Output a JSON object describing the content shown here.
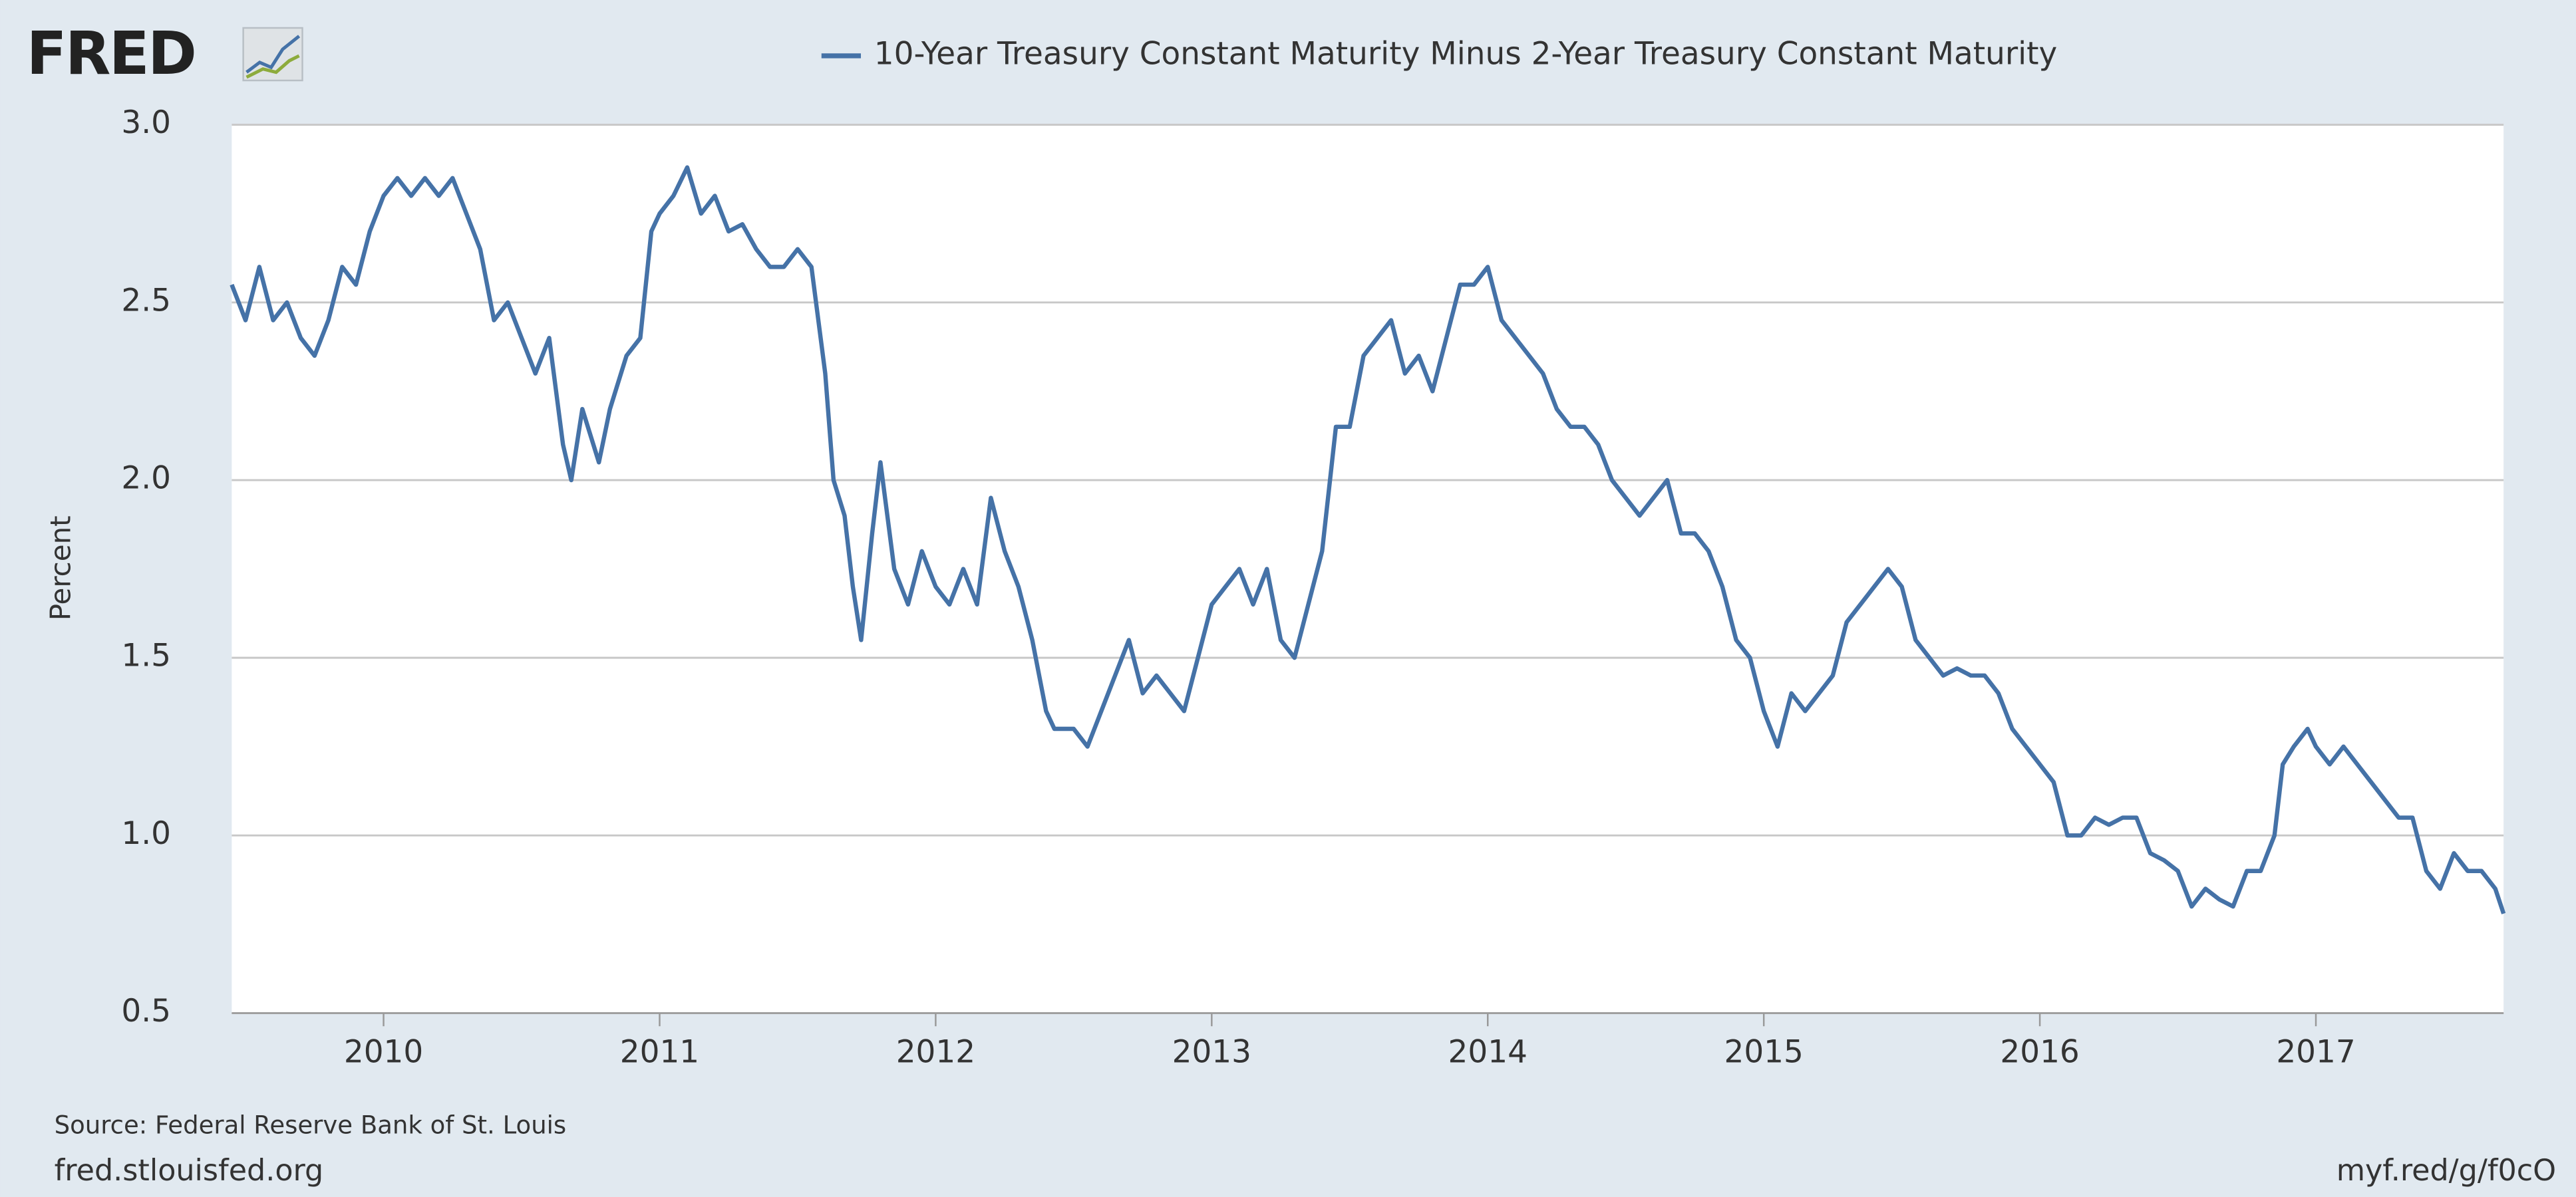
{
  "chart_data": {
    "type": "line",
    "logo": "FRED",
    "y_label": "Percent",
    "source": "Source: Federal Reserve Bank of St. Louis",
    "site": "fred.stlouisfed.org",
    "short_url": "myf.red/g/f0cO",
    "x": [
      2009.45,
      2009.5,
      2009.55,
      2009.6,
      2009.65,
      2009.7,
      2009.75,
      2009.8,
      2009.85,
      2009.9,
      2009.95,
      2010.0,
      2010.05,
      2010.1,
      2010.15,
      2010.2,
      2010.25,
      2010.3,
      2010.35,
      2010.4,
      2010.45,
      2010.5,
      2010.55,
      2010.6,
      2010.65,
      2010.68,
      2010.72,
      2010.78,
      2010.82,
      2010.88,
      2010.93,
      2010.97,
      2011.0,
      2011.05,
      2011.1,
      2011.15,
      2011.2,
      2011.25,
      2011.3,
      2011.35,
      2011.4,
      2011.45,
      2011.5,
      2011.55,
      2011.6,
      2011.63,
      2011.67,
      2011.7,
      2011.73,
      2011.77,
      2011.8,
      2011.85,
      2011.9,
      2011.95,
      2012.0,
      2012.05,
      2012.1,
      2012.15,
      2012.2,
      2012.25,
      2012.3,
      2012.35,
      2012.4,
      2012.43,
      2012.5,
      2012.55,
      2012.6,
      2012.65,
      2012.7,
      2012.75,
      2012.8,
      2012.85,
      2012.9,
      2012.95,
      2013.0,
      2013.05,
      2013.1,
      2013.15,
      2013.2,
      2013.25,
      2013.3,
      2013.35,
      2013.4,
      2013.45,
      2013.5,
      2013.55,
      2013.6,
      2013.65,
      2013.7,
      2013.75,
      2013.8,
      2013.85,
      2013.9,
      2013.95,
      2014.0,
      2014.05,
      2014.1,
      2014.15,
      2014.2,
      2014.25,
      2014.3,
      2014.35,
      2014.4,
      2014.45,
      2014.5,
      2014.55,
      2014.6,
      2014.65,
      2014.7,
      2014.75,
      2014.8,
      2014.85,
      2014.9,
      2014.95,
      2015.0,
      2015.05,
      2015.1,
      2015.15,
      2015.2,
      2015.25,
      2015.3,
      2015.35,
      2015.4,
      2015.45,
      2015.5,
      2015.55,
      2015.6,
      2015.65,
      2015.7,
      2015.75,
      2015.8,
      2015.85,
      2015.9,
      2015.95,
      2016.0,
      2016.05,
      2016.1,
      2016.15,
      2016.2,
      2016.25,
      2016.3,
      2016.35,
      2016.4,
      2016.45,
      2016.5,
      2016.55,
      2016.6,
      2016.65,
      2016.7,
      2016.75,
      2016.8,
      2016.85,
      2016.88,
      2016.92,
      2016.97,
      2017.0,
      2017.05,
      2017.1,
      2017.15,
      2017.2,
      2017.25,
      2017.3,
      2017.35,
      2017.4,
      2017.45,
      2017.5,
      2017.55,
      2017.6,
      2017.65,
      2017.68
    ],
    "series": [
      {
        "name": "10-Year Treasury Constant Maturity Minus 2-Year Treasury Constant Maturity",
        "color": "#4572a7",
        "values": [
          2.55,
          2.45,
          2.6,
          2.45,
          2.5,
          2.4,
          2.35,
          2.45,
          2.6,
          2.55,
          2.7,
          2.8,
          2.85,
          2.8,
          2.85,
          2.8,
          2.85,
          2.75,
          2.65,
          2.45,
          2.5,
          2.4,
          2.3,
          2.4,
          2.1,
          2.0,
          2.2,
          2.05,
          2.2,
          2.35,
          2.4,
          2.7,
          2.75,
          2.8,
          2.88,
          2.75,
          2.8,
          2.7,
          2.72,
          2.65,
          2.6,
          2.6,
          2.65,
          2.6,
          2.3,
          2.0,
          1.9,
          1.7,
          1.55,
          1.85,
          2.05,
          1.75,
          1.65,
          1.8,
          1.7,
          1.65,
          1.75,
          1.65,
          1.95,
          1.8,
          1.7,
          1.55,
          1.35,
          1.3,
          1.3,
          1.25,
          1.35,
          1.45,
          1.55,
          1.4,
          1.45,
          1.4,
          1.35,
          1.5,
          1.65,
          1.7,
          1.75,
          1.65,
          1.75,
          1.55,
          1.5,
          1.65,
          1.8,
          2.15,
          2.15,
          2.35,
          2.4,
          2.45,
          2.3,
          2.35,
          2.25,
          2.4,
          2.55,
          2.55,
          2.6,
          2.45,
          2.4,
          2.35,
          2.3,
          2.2,
          2.15,
          2.15,
          2.1,
          2.0,
          1.95,
          1.9,
          1.95,
          2.0,
          1.85,
          1.85,
          1.8,
          1.7,
          1.55,
          1.5,
          1.35,
          1.25,
          1.4,
          1.35,
          1.4,
          1.45,
          1.6,
          1.65,
          1.7,
          1.75,
          1.7,
          1.55,
          1.5,
          1.45,
          1.47,
          1.45,
          1.45,
          1.4,
          1.3,
          1.25,
          1.2,
          1.15,
          1.0,
          1.0,
          1.05,
          1.03,
          1.05,
          1.05,
          0.95,
          0.93,
          0.9,
          0.8,
          0.85,
          0.82,
          0.8,
          0.9,
          0.9,
          1.0,
          1.2,
          1.25,
          1.3,
          1.25,
          1.2,
          1.25,
          1.2,
          1.15,
          1.1,
          1.05,
          1.05,
          0.9,
          0.85,
          0.95,
          0.9,
          0.9,
          0.85,
          0.78
        ]
      }
    ],
    "xlim": [
      2009.45,
      2017.68
    ],
    "xticks": [
      2010,
      2011,
      2012,
      2013,
      2014,
      2015,
      2016,
      2017
    ],
    "ylim": [
      0.5,
      3
    ],
    "yticks": [
      0.5,
      {
        "value": 1,
        "label": "1.0"
      },
      1.5,
      {
        "value": 2,
        "label": "2.0"
      },
      2.5,
      {
        "value": 3,
        "label": "3.0"
      }
    ],
    "grid": true
  }
}
